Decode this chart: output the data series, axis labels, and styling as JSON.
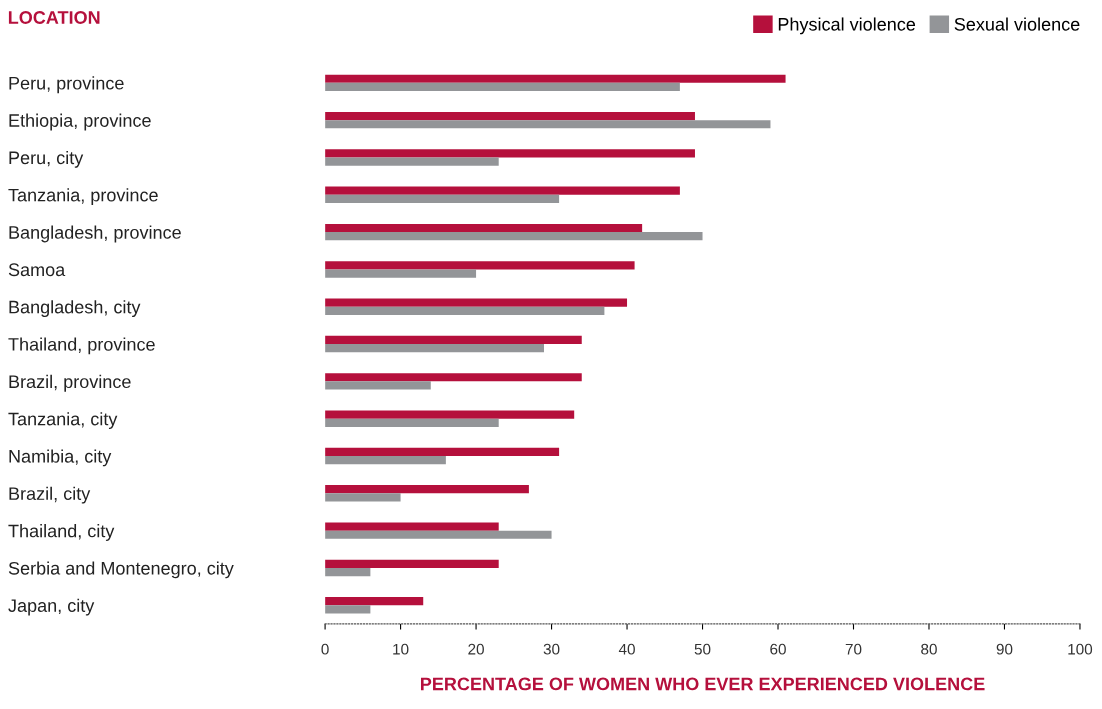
{
  "chart_data": {
    "type": "bar",
    "orientation": "horizontal",
    "ylabel": "LOCATION",
    "xlabel": "PERCENTAGE OF WOMEN WHO EVER EXPERIENCED VIOLENCE",
    "categories": [
      "Peru, province",
      "Ethiopia, province",
      "Peru, city",
      "Tanzania, province",
      "Bangladesh, province",
      "Samoa",
      "Bangladesh, city",
      "Thailand, province",
      "Brazil, province",
      "Tanzania, city",
      "Namibia, city",
      "Brazil, city",
      "Thailand, city",
      "Serbia and Montenegro, city",
      "Japan, city"
    ],
    "series": [
      {
        "name": "Physical violence",
        "color": "#b5103c",
        "values": [
          61,
          49,
          49,
          47,
          42,
          41,
          40,
          34,
          34,
          33,
          31,
          27,
          23,
          23,
          13
        ]
      },
      {
        "name": "Sexual violence",
        "color": "#939598",
        "values": [
          47,
          59,
          23,
          31,
          50,
          20,
          37,
          29,
          14,
          23,
          16,
          10,
          30,
          6,
          6
        ]
      }
    ],
    "xlim": [
      0,
      100
    ],
    "xticks": [
      0,
      10,
      20,
      30,
      40,
      50,
      60,
      70,
      80,
      90,
      100
    ],
    "legend": "top right",
    "grid": false
  }
}
